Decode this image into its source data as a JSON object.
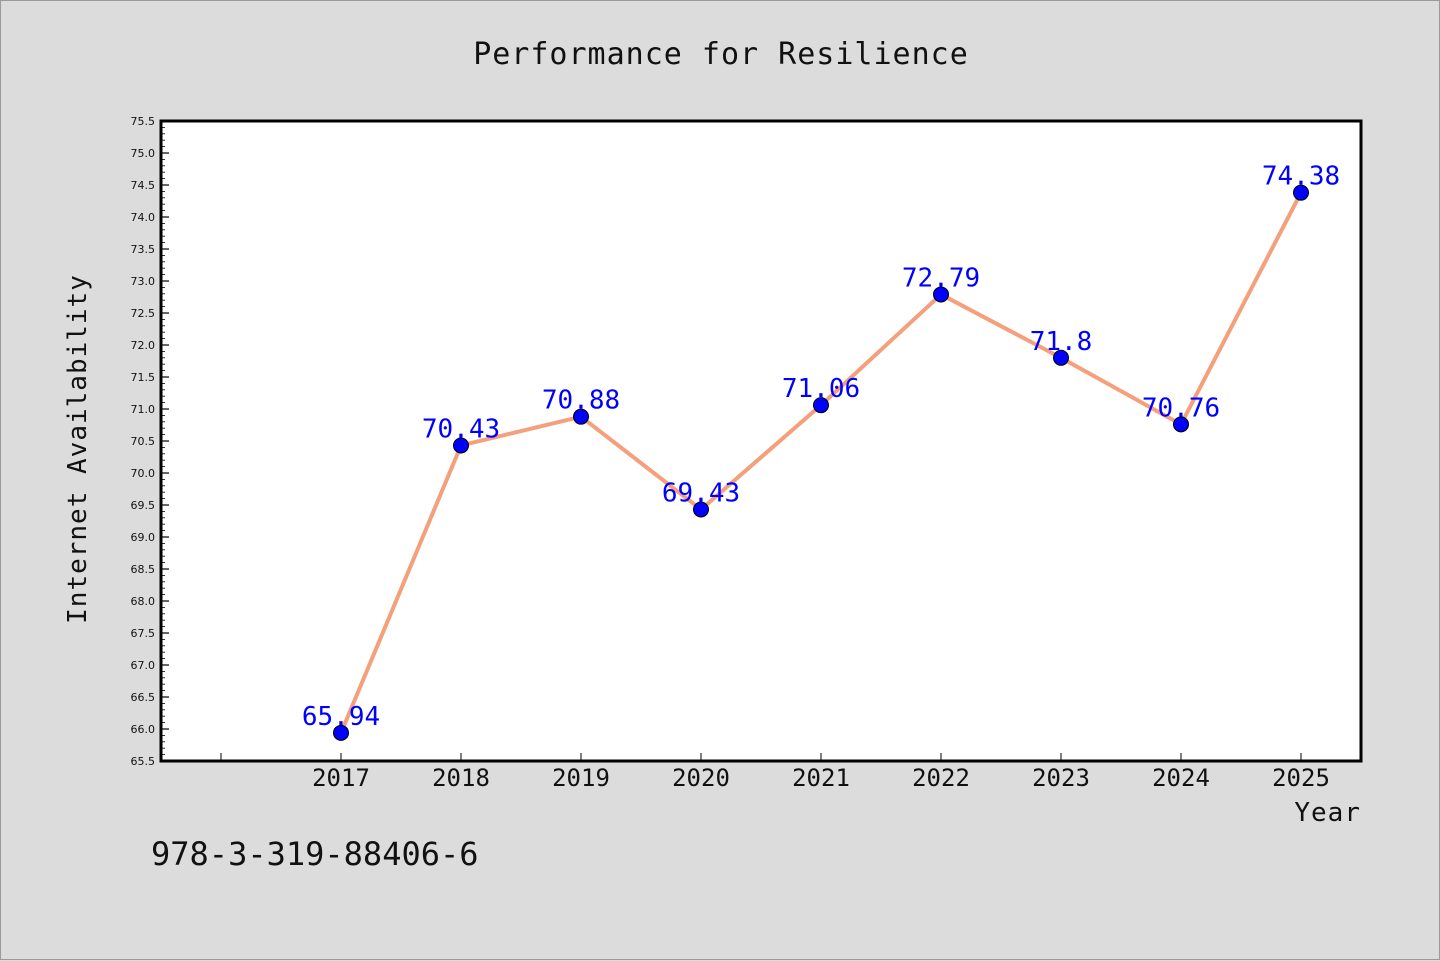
{
  "chart_data": {
    "type": "line",
    "title": "Performance for Resilience",
    "xlabel": "Year",
    "ylabel": "Internet Availability",
    "categories": [
      "2017",
      "2018",
      "2019",
      "2020",
      "2021",
      "2022",
      "2023",
      "2024",
      "2025"
    ],
    "series": [
      {
        "values": [
          65.94,
          70.43,
          70.88,
          69.43,
          71.06,
          72.79,
          71.8,
          70.76,
          74.38
        ],
        "data_labels": [
          "65.94",
          "70.43",
          "70.88",
          "69.43",
          "71.06",
          "72.79",
          "71.8",
          "70.76",
          "74.38"
        ],
        "line_color": "#f4a07c",
        "marker_color": "#0000ff"
      }
    ],
    "ylim": [
      65.5,
      75.5
    ],
    "yticks": [
      "65.5",
      "66.0",
      "66.5",
      "67.0",
      "67.5",
      "68.0",
      "68.5",
      "69.0",
      "69.5",
      "70.0",
      "70.5",
      "71.0",
      "71.5",
      "72.0",
      "72.5",
      "73.0",
      "73.5",
      "74.0",
      "74.5",
      "75.0",
      "75.5"
    ],
    "grid": false,
    "legend": "none"
  },
  "footer": {
    "text": "978-3-319-88406-6"
  },
  "colors": {
    "background": "#dcdcdc",
    "plot_area": "#ffffff",
    "label_color": "#0000ff"
  }
}
